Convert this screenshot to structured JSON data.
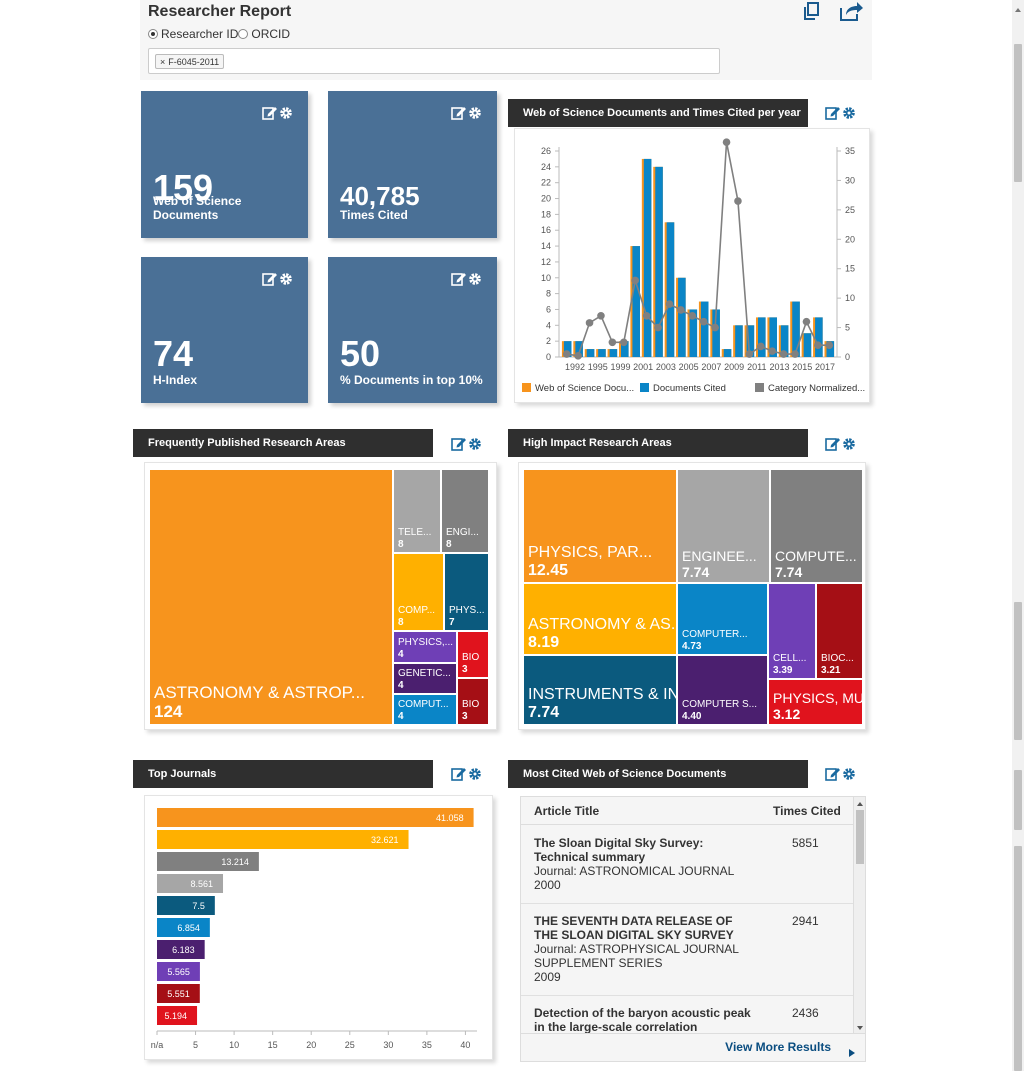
{
  "header": {
    "title": "Researcher Report",
    "radio_researcher_id": "Researcher ID",
    "radio_orcid": "ORCID",
    "chip_remove": "×",
    "chip_value": "F-6045-2011"
  },
  "tiles": [
    {
      "value": "159",
      "label": "Web of Science Documents"
    },
    {
      "value": "40,785",
      "label": "Times Cited"
    },
    {
      "value": "74",
      "label": "H-Index"
    },
    {
      "value": "50",
      "label": "% Documents in top 10%"
    }
  ],
  "widgets": {
    "per_year": "Web of Science Documents and Times Cited per year",
    "research_areas": "Frequently Published Research Areas",
    "high_impact": "High Impact Research Areas",
    "top_journals": "Top Journals",
    "most_cited": "Most Cited Web of Science Documents"
  },
  "colors": {
    "orange": "#f7941d",
    "yellow": "#ffb000",
    "gray_light": "#a6a6a6",
    "gray_dark": "#808080",
    "teal_dark": "#0b5a7e",
    "blue": "#0a85c7",
    "purple_dark": "#4b1f6f",
    "purple": "#6f3fb6",
    "red_dark": "#a50f15",
    "red": "#e0131d",
    "tile_blue": "#4a7096"
  },
  "chart_data": [
    {
      "type": "bar",
      "series": [
        {
          "name": "Web of Science Docu...",
          "values": [
            2,
            2,
            1,
            1,
            1,
            2,
            14,
            25,
            24,
            17,
            10,
            6,
            7,
            6,
            1,
            4,
            4,
            5,
            5,
            4,
            7,
            3,
            5,
            2
          ]
        },
        {
          "name": "Documents Cited",
          "values": [
            2,
            2,
            1,
            1,
            1,
            2,
            14,
            25,
            24,
            17,
            10,
            6,
            7,
            6,
            1,
            4,
            4,
            5,
            5,
            4,
            7,
            3,
            5,
            2
          ]
        },
        {
          "name": "Category Normalized...",
          "values": [
            0.5,
            0.2,
            5.8,
            7,
            2.5,
            2.5,
            13,
            7,
            5,
            9,
            8,
            7,
            6,
            5,
            36.5,
            26.5,
            0.5,
            1.8,
            1,
            0.5,
            0.5,
            6,
            2,
            2
          ]
        }
      ],
      "x": [
        1992,
        1993,
        1994,
        1995,
        1996,
        1997,
        1998,
        1999,
        2000,
        2001,
        2002,
        2003,
        2004,
        2005,
        2006,
        2007,
        2008,
        2009,
        2010,
        2011,
        2012,
        2013,
        2014,
        2015
      ],
      "x_tick_labels": [
        "1992",
        "1995",
        "1999",
        "2001",
        "2003",
        "2005",
        "2007",
        "2009",
        "2011",
        "2013",
        "2015",
        "2017"
      ],
      "y_left_ticks": [
        "0",
        "2",
        "4",
        "6",
        "8",
        "10",
        "12",
        "14",
        "16",
        "18",
        "20",
        "22",
        "24",
        "26"
      ],
      "y_right_ticks": [
        "0",
        "5",
        "10",
        "15",
        "20",
        "25",
        "30",
        "35"
      ],
      "ylim_left": [
        0,
        26
      ],
      "ylim_right": [
        0,
        35
      ],
      "legend_position": "bottom"
    },
    {
      "type": "treemap",
      "cells": [
        {
          "name": "ASTRONOMY & ASTROP...",
          "value": 124,
          "color": "orange"
        },
        {
          "name": "TELE...",
          "value": 8,
          "color": "gray_light"
        },
        {
          "name": "ENGI...",
          "value": 8,
          "color": "gray_dark"
        },
        {
          "name": "COMP...",
          "value": 8,
          "color": "yellow"
        },
        {
          "name": "PHYS...",
          "value": 7,
          "color": "teal_dark"
        },
        {
          "name": "PHYSICS,...",
          "value": 4,
          "color": "purple"
        },
        {
          "name": "BIO",
          "value": 3,
          "color": "red"
        },
        {
          "name": "GENETIC...",
          "value": 4,
          "color": "purple_dark"
        },
        {
          "name": "COMPUT...",
          "value": 4,
          "color": "blue"
        },
        {
          "name": "BIO",
          "value": 3,
          "color": "red_dark"
        }
      ]
    },
    {
      "type": "treemap",
      "cells": [
        {
          "name": "PHYSICS, PAR...",
          "value": "12.45",
          "color": "orange"
        },
        {
          "name": "ENGINEE...",
          "value": "7.74",
          "color": "gray_light"
        },
        {
          "name": "COMPUTE...",
          "value": "7.74",
          "color": "gray_dark"
        },
        {
          "name": "ASTRONOMY & AS...",
          "value": "8.19",
          "color": "yellow"
        },
        {
          "name": "COMPUTER...",
          "value": "4.73",
          "color": "blue"
        },
        {
          "name": "CELL...",
          "value": "3.39",
          "color": "purple"
        },
        {
          "name": "BIOC...",
          "value": "3.21",
          "color": "red_dark"
        },
        {
          "name": "INSTRUMENTS & IN...",
          "value": "7.74",
          "color": "teal_dark"
        },
        {
          "name": "COMPUTER S...",
          "value": "4.40",
          "color": "purple_dark"
        },
        {
          "name": "PHYSICS, MULTI...",
          "value": "3.12",
          "color": "red"
        }
      ]
    },
    {
      "type": "bar",
      "orientation": "horizontal",
      "values": [
        41.058,
        32.621,
        13.214,
        8.561,
        7.5,
        6.854,
        6.183,
        5.565,
        5.551,
        5.194
      ],
      "value_labels": [
        "41.058",
        "32.621",
        "13.214",
        "8.561",
        "7.5",
        "6.854",
        "6.183",
        "5.565",
        "5.551",
        "5.194"
      ],
      "bar_colors": [
        "orange",
        "yellow",
        "gray_dark",
        "gray_light",
        "teal_dark",
        "blue",
        "purple_dark",
        "purple",
        "red_dark",
        "red"
      ],
      "x_ticks": [
        "n/a",
        "5",
        "10",
        "15",
        "20",
        "25",
        "30",
        "35",
        "40"
      ],
      "xlim": [
        0,
        41.5
      ]
    }
  ],
  "most_cited": {
    "col_title": "Article Title",
    "col_cited": "Times Cited",
    "rows": [
      {
        "title": "The Sloan Digital Sky Survey: Technical summary",
        "journal": "Journal: ASTRONOMICAL JOURNAL",
        "year": "2000",
        "cited": "5851"
      },
      {
        "title": "THE SEVENTH DATA RELEASE OF THE SLOAN DIGITAL SKY SURVEY",
        "journal": "Journal: ASTROPHYSICAL JOURNAL SUPPLEMENT SERIES",
        "year": "2009",
        "cited": "2941"
      },
      {
        "title": "Detection of the baryon acoustic peak in the large-scale correlation",
        "journal": "",
        "year": "",
        "cited": "2436"
      }
    ],
    "view_more": "View More Results"
  }
}
